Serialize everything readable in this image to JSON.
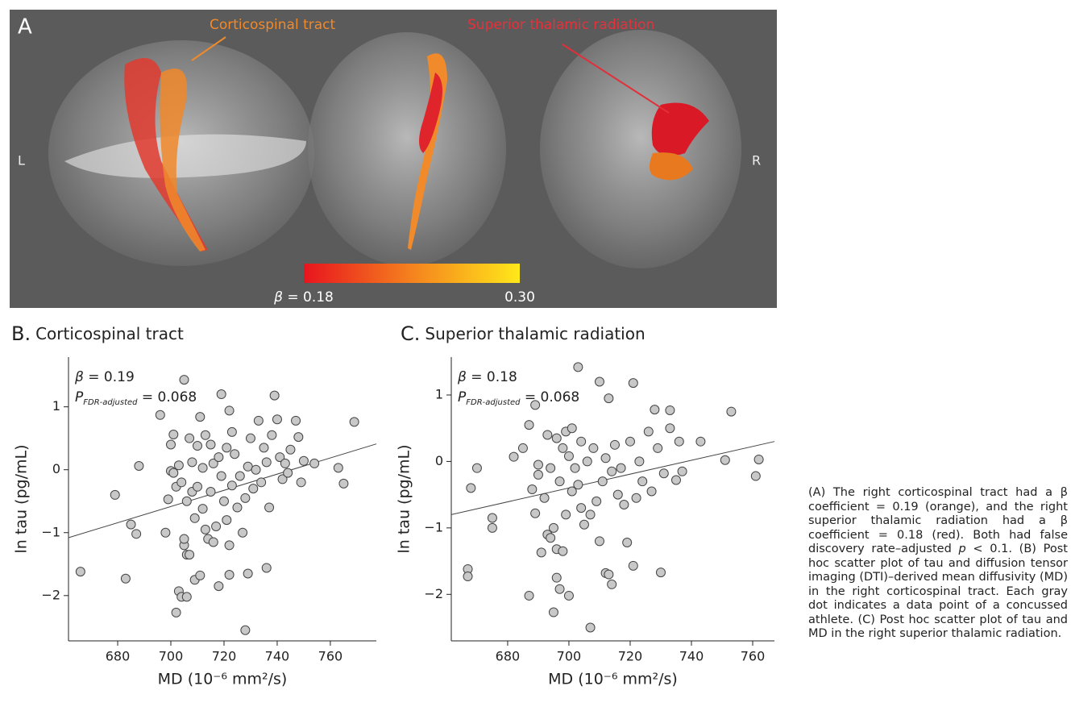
{
  "panel_a": {
    "label": "A",
    "left": "L",
    "right": "R",
    "tract1": "Corticospinal tract",
    "tract2": "Superior thalamic radiation",
    "colorbar": {
      "symbol": "β",
      "ticks": [
        {
          "value": 0.18,
          "label": " = 0.18"
        },
        {
          "value": 0.3,
          "label": "0.30"
        }
      ]
    }
  },
  "chart_data": [
    {
      "type": "scatter",
      "panel": "B.",
      "title": "Corticospinal tract",
      "xlabel": "MD (10⁻⁶ mm²/s)",
      "ylabel": "ln tau (pg/mL)",
      "annotation": {
        "symbol": "β",
        "beta": " = 0.19",
        "p": "P",
        "p_sub": "FDR-adjusted",
        "p_value": " = 0.068"
      },
      "xlim": [
        661.5,
        777.3
      ],
      "xticks": [
        680,
        700,
        720,
        740,
        760
      ],
      "ylim": [
        -2.72,
        1.79
      ],
      "yticks": [
        {
          "value": -2,
          "label": "−2"
        },
        {
          "value": -1,
          "label": "−1"
        },
        0,
        1
      ],
      "point_color": "#c8c8c8",
      "line_color": "#444",
      "x": [
        666,
        679,
        683,
        685,
        687,
        688,
        696,
        698,
        699,
        700,
        700,
        701,
        701,
        702,
        702,
        703,
        703,
        704,
        704,
        705,
        705,
        705,
        706,
        706,
        706,
        707,
        707,
        708,
        708,
        709,
        709,
        710,
        710,
        711,
        711,
        712,
        712,
        713,
        713,
        714,
        715,
        715,
        716,
        716,
        717,
        718,
        718,
        719,
        719,
        720,
        721,
        721,
        722,
        722,
        722,
        723,
        723,
        724,
        725,
        726,
        727,
        728,
        728,
        729,
        729,
        730,
        731,
        732,
        733,
        734,
        735,
        736,
        736,
        737,
        738,
        739,
        740,
        741,
        742,
        743,
        744,
        745,
        747,
        748,
        749,
        750,
        754,
        763,
        765,
        769
      ],
      "values": [
        -1.62,
        -0.4,
        -1.73,
        -0.87,
        -1.02,
        0.06,
        0.87,
        -1.0,
        -0.47,
        0.4,
        -0.02,
        0.56,
        -0.05,
        -2.27,
        -0.27,
        -1.93,
        0.07,
        -2.02,
        -0.2,
        -1.2,
        -1.1,
        1.43,
        -2.02,
        -0.5,
        -1.35,
        0.5,
        -1.35,
        0.12,
        -0.35,
        -1.75,
        -0.77,
        0.38,
        -0.27,
        0.84,
        -1.68,
        -0.62,
        0.03,
        0.55,
        -0.95,
        -1.1,
        0.4,
        -0.35,
        -1.15,
        0.1,
        -0.9,
        -1.85,
        0.2,
        1.2,
        -0.1,
        -0.5,
        0.35,
        -0.8,
        -1.67,
        -1.2,
        0.94,
        0.6,
        -0.25,
        0.25,
        -0.6,
        -0.1,
        -1.0,
        -0.45,
        -2.55,
        -1.65,
        0.05,
        0.5,
        -0.3,
        0.0,
        0.78,
        -0.2,
        0.35,
        -1.56,
        0.12,
        -0.6,
        0.55,
        1.18,
        0.8,
        0.2,
        -0.15,
        0.1,
        -0.05,
        0.32,
        0.78,
        0.52,
        -0.2,
        0.14,
        0.1,
        0.03,
        -0.22,
        0.76
      ],
      "fit": {
        "x": [
          661.5,
          777.3
        ],
        "values": [
          -1.08,
          0.41
        ]
      }
    },
    {
      "type": "scatter",
      "panel": "C.",
      "title": "Superior thalamic radiation",
      "xlabel": "MD (10⁻⁶ mm²/s)",
      "ylabel": "ln tau (pg/mL)",
      "annotation": {
        "symbol": "β",
        "beta": " = 0.18",
        "p": "P",
        "p_sub": "FDR-adjusted",
        "p_value": " = 0.068"
      },
      "xlim": [
        661.6,
        767.1
      ],
      "xticks": [
        680,
        700,
        720,
        740,
        760
      ],
      "ylim": [
        -2.7,
        1.57
      ],
      "yticks": [
        {
          "value": -2,
          "label": "−2"
        },
        {
          "value": -1,
          "label": "−1"
        },
        0,
        1
      ],
      "point_color": "#c8c8c8",
      "line_color": "#444",
      "x": [
        667,
        667,
        668,
        670,
        675,
        675,
        682,
        685,
        687,
        687,
        688,
        689,
        689,
        690,
        690,
        691,
        692,
        693,
        693,
        694,
        694,
        695,
        695,
        696,
        696,
        696,
        697,
        697,
        698,
        698,
        699,
        699,
        700,
        700,
        701,
        701,
        702,
        703,
        703,
        704,
        704,
        705,
        706,
        707,
        707,
        708,
        709,
        710,
        710,
        711,
        712,
        712,
        713,
        713,
        714,
        714,
        715,
        716,
        717,
        718,
        719,
        720,
        721,
        721,
        722,
        723,
        724,
        726,
        727,
        728,
        729,
        730,
        731,
        733,
        733,
        735,
        736,
        737,
        743,
        751,
        753,
        761,
        762
      ],
      "values": [
        -1.62,
        -1.73,
        -0.4,
        -0.1,
        -0.85,
        -1.0,
        0.07,
        0.2,
        -2.02,
        0.55,
        -0.42,
        -0.78,
        0.85,
        -0.2,
        -0.05,
        -1.37,
        -0.55,
        -1.1,
        0.4,
        -1.15,
        -0.1,
        -2.27,
        -1.0,
        -1.75,
        -1.32,
        0.35,
        -1.92,
        -0.3,
        -1.35,
        0.2,
        -0.8,
        0.45,
        -2.02,
        0.08,
        0.5,
        -0.45,
        -0.1,
        -0.35,
        1.42,
        -0.7,
        0.3,
        -0.95,
        0.0,
        -2.5,
        -0.8,
        0.2,
        -0.6,
        1.2,
        -1.2,
        -0.3,
        0.05,
        -1.68,
        0.95,
        -1.7,
        -0.15,
        -1.85,
        0.25,
        -0.5,
        -0.1,
        -0.65,
        -1.22,
        0.3,
        1.18,
        -1.57,
        -0.55,
        0.0,
        -0.3,
        0.45,
        -0.45,
        0.78,
        0.2,
        -1.67,
        -0.18,
        0.5,
        0.77,
        -0.28,
        0.3,
        -0.15,
        0.3,
        0.02,
        0.75,
        -0.22,
        0.03
      ],
      "fit": {
        "x": [
          661.6,
          767.1
        ],
        "values": [
          -0.8,
          0.3
        ]
      }
    }
  ],
  "caption": [
    "(A) The right corticospinal tract had a β coefficient = 0.19 (orange), and the right superior thalamic radiation had a β coefficient = 0.18 (red). Both had false discovery rate–adjusted ",
    "p",
    " < 0.1. (B) Post hoc scatter plot of tau and diffusion tensor imaging (DTI)–derived mean diffusivity (MD) in the right corticospinal tract. Each gray dot indicates a data point of a concussed athlete. (C) Post hoc scatter plot of tau and MD in the right superior thalamic radiation."
  ]
}
